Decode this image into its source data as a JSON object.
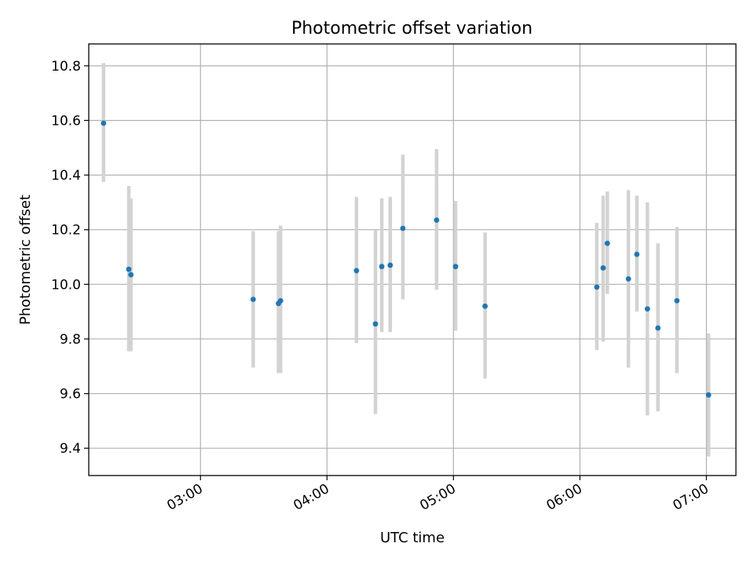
{
  "chart_data": {
    "type": "scatter",
    "title": "Photometric offset variation",
    "xlabel": "UTC time",
    "ylabel": "Photometric offset",
    "grid": true,
    "colors": {
      "point": "#1f77b4",
      "errorbar": "#d3d3d3"
    },
    "xlim": [
      "02:07",
      "07:14"
    ],
    "ylim": [
      9.3,
      10.88
    ],
    "x_ticks": [
      "03:00",
      "04:00",
      "05:00",
      "06:00",
      "07:00"
    ],
    "y_ticks": [
      "9.4",
      "9.6",
      "9.8",
      "10.0",
      "10.2",
      "10.4",
      "10.6",
      "10.8"
    ],
    "points": [
      {
        "x": "02:14",
        "y": 10.59,
        "ylo": 10.375,
        "yhi": 10.81
      },
      {
        "x": "02:26",
        "y": 10.055,
        "ylo": 9.755,
        "yhi": 10.36
      },
      {
        "x": "02:27",
        "y": 10.035,
        "ylo": 9.755,
        "yhi": 10.315
      },
      {
        "x": "03:25",
        "y": 9.945,
        "ylo": 9.695,
        "yhi": 10.195
      },
      {
        "x": "03:37",
        "y": 9.93,
        "ylo": 9.675,
        "yhi": 10.195
      },
      {
        "x": "03:38",
        "y": 9.94,
        "ylo": 9.675,
        "yhi": 10.215
      },
      {
        "x": "04:14",
        "y": 10.05,
        "ylo": 9.785,
        "yhi": 10.32
      },
      {
        "x": "04:23",
        "y": 9.855,
        "ylo": 9.525,
        "yhi": 10.2
      },
      {
        "x": "04:26",
        "y": 10.065,
        "ylo": 9.825,
        "yhi": 10.315
      },
      {
        "x": "04:30",
        "y": 10.07,
        "ylo": 9.825,
        "yhi": 10.32
      },
      {
        "x": "04:36",
        "y": 10.205,
        "ylo": 9.945,
        "yhi": 10.475
      },
      {
        "x": "04:52",
        "y": 10.235,
        "ylo": 9.98,
        "yhi": 10.495
      },
      {
        "x": "05:01",
        "y": 10.065,
        "ylo": 9.83,
        "yhi": 10.305
      },
      {
        "x": "05:15",
        "y": 9.92,
        "ylo": 9.655,
        "yhi": 10.19
      },
      {
        "x": "06:08",
        "y": 9.99,
        "ylo": 9.76,
        "yhi": 10.225
      },
      {
        "x": "06:11",
        "y": 10.06,
        "ylo": 9.79,
        "yhi": 10.325
      },
      {
        "x": "06:13",
        "y": 10.15,
        "ylo": 9.965,
        "yhi": 10.34
      },
      {
        "x": "06:23",
        "y": 10.02,
        "ylo": 9.695,
        "yhi": 10.345
      },
      {
        "x": "06:27",
        "y": 10.11,
        "ylo": 9.9,
        "yhi": 10.325
      },
      {
        "x": "06:32",
        "y": 9.91,
        "ylo": 9.52,
        "yhi": 10.3
      },
      {
        "x": "06:37",
        "y": 9.84,
        "ylo": 9.535,
        "yhi": 10.15
      },
      {
        "x": "06:46",
        "y": 9.94,
        "ylo": 9.675,
        "yhi": 10.21
      },
      {
        "x": "07:01",
        "y": 9.595,
        "ylo": 9.37,
        "yhi": 9.82
      }
    ]
  }
}
